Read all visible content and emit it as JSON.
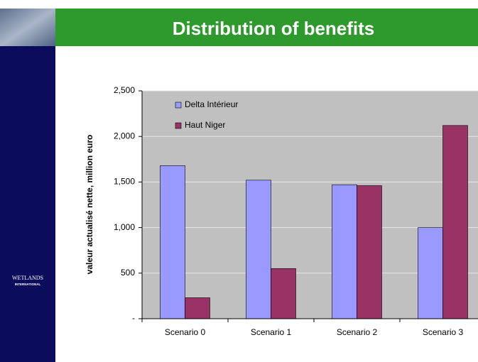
{
  "chart_data": {
    "type": "bar",
    "title": "Distribution of benefits",
    "y_label": "valeur actualisé nette, million euro",
    "categories": [
      "Scenario 0",
      "Scenario 1",
      "Scenario 2",
      "Scenario 3"
    ],
    "series": [
      {
        "name": "Delta Intérieur",
        "color": "#9999ff",
        "values": [
          1680,
          1520,
          1470,
          1000
        ]
      },
      {
        "name": "Haut Niger",
        "color": "#993366",
        "values": [
          230,
          550,
          1460,
          2120
        ]
      }
    ],
    "ylim": [
      0,
      2500
    ],
    "yticks": [
      {
        "value": 0,
        "label": "-"
      },
      500,
      {
        "value": 1000,
        "label": "1,000"
      },
      {
        "value": 1500,
        "label": "1,500"
      },
      {
        "value": 2000,
        "label": "2,000"
      },
      {
        "value": 2500,
        "label": "2,500"
      }
    ],
    "grid": true,
    "legend": "top-left"
  },
  "logo": {
    "line1": "WETLANDS",
    "line2": "INTERNATIONAL"
  }
}
